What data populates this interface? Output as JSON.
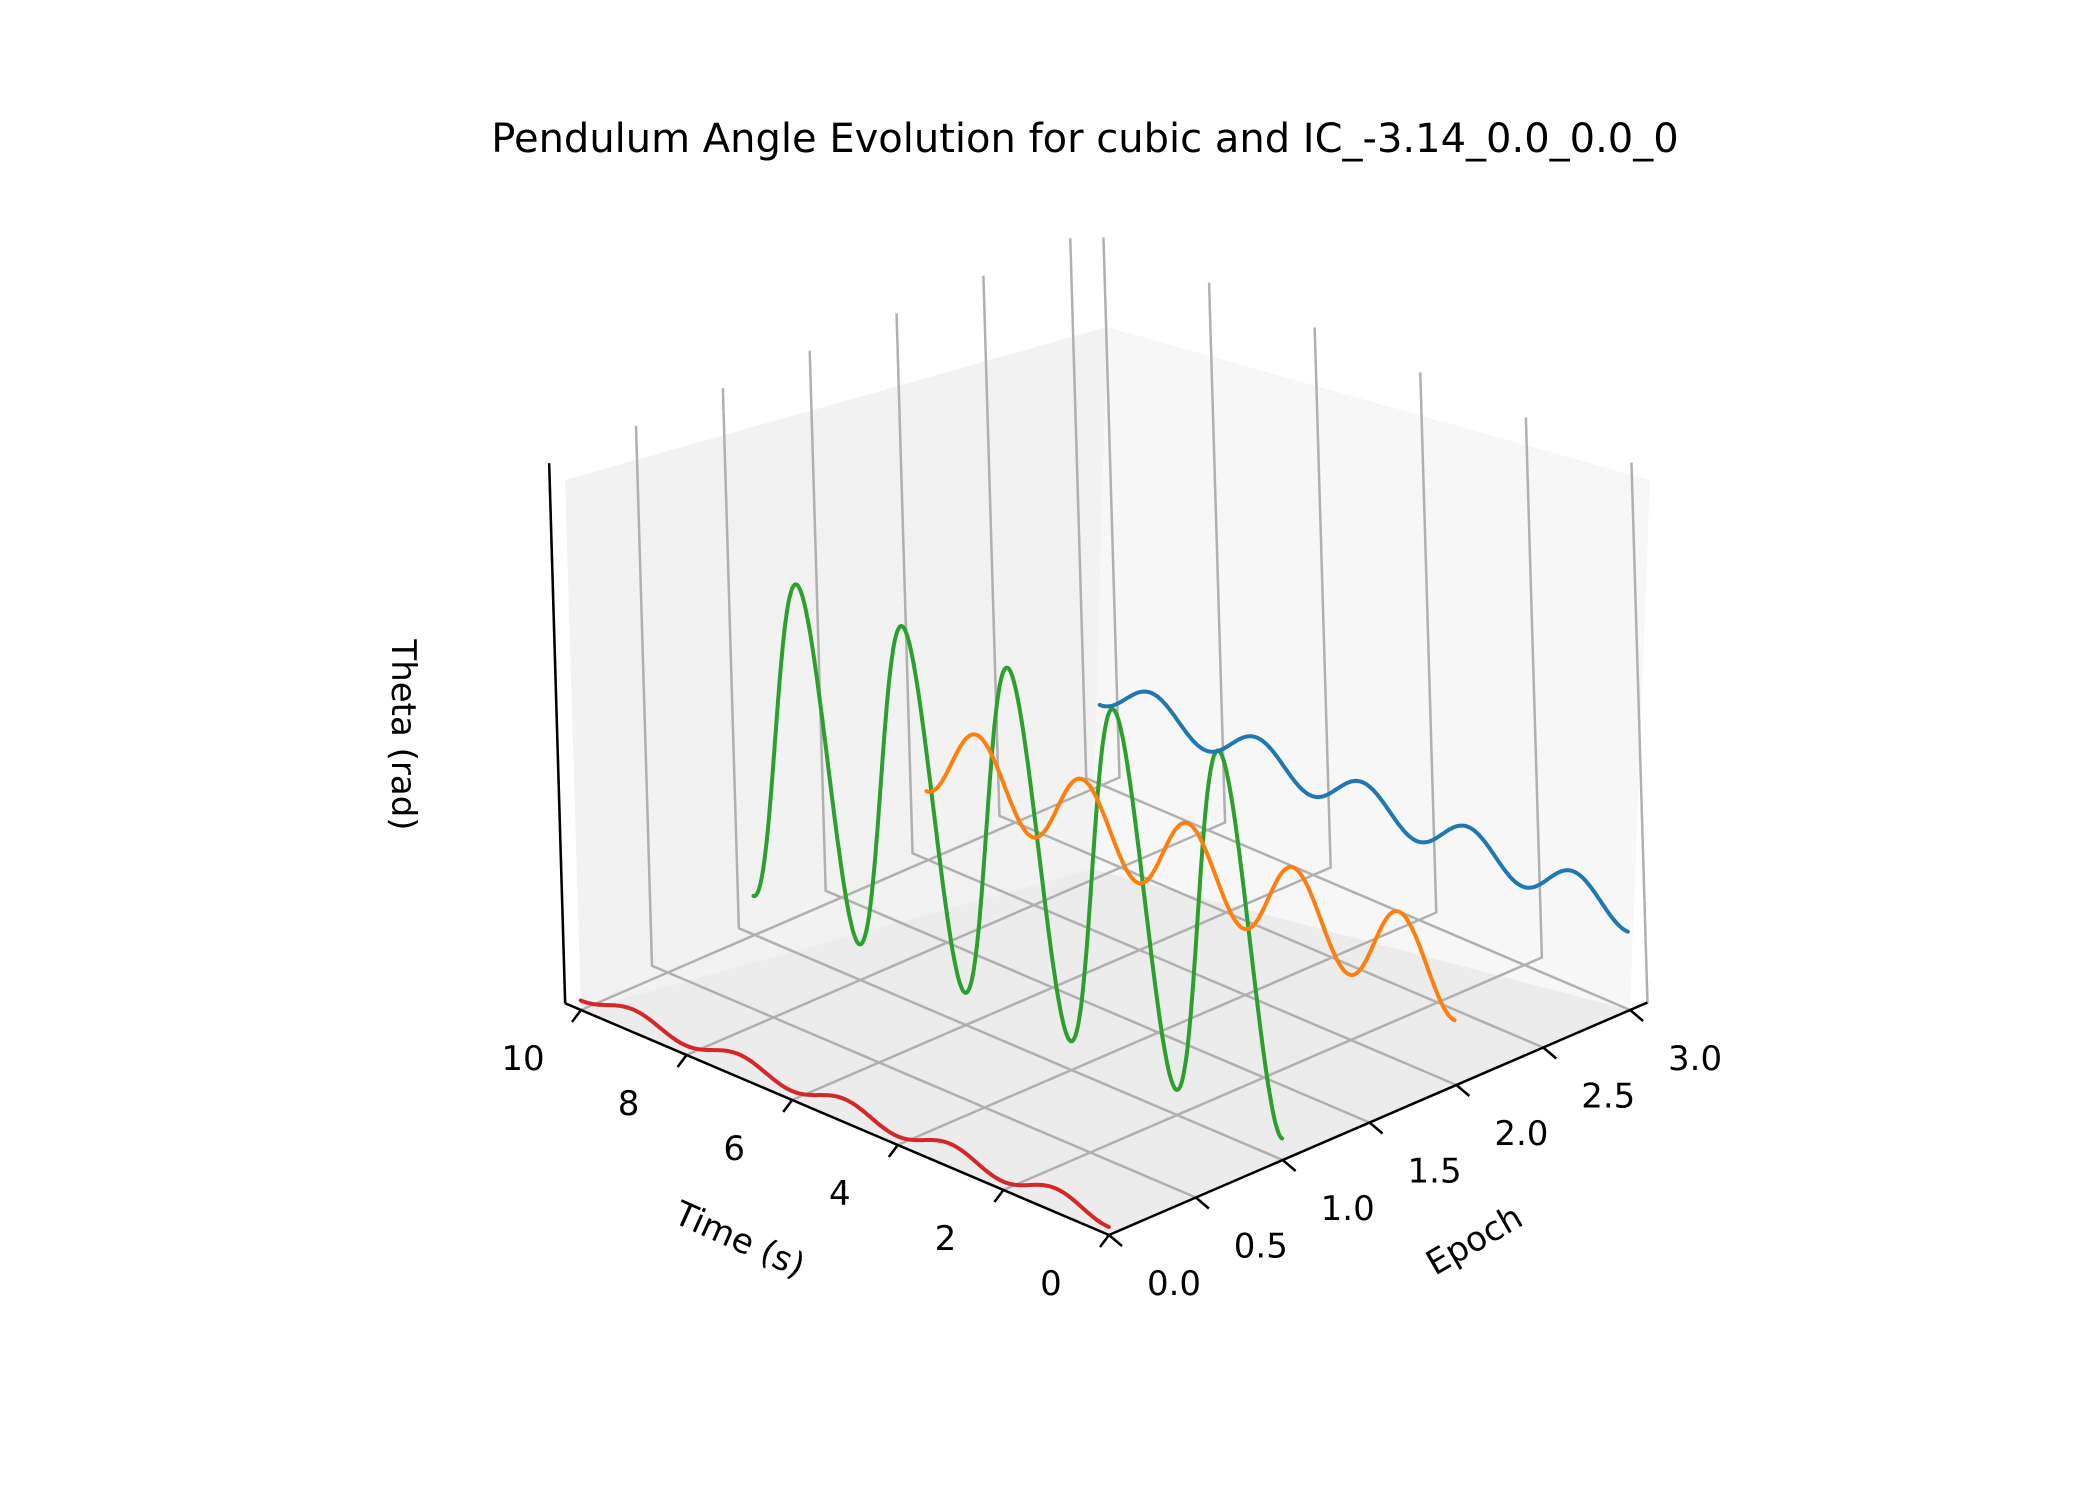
{
  "chart_data": {
    "type": "line",
    "projection": "3d",
    "title": "Pendulum Angle Evolution for cubic and IC_-3.14_0.0_0.0_0",
    "xlabel": "Time (s)",
    "ylabel": "Epoch",
    "zlabel": "Theta (rad)",
    "xlim": [
      0,
      10
    ],
    "ylim": [
      0,
      3
    ],
    "grid": true,
    "x_ticks": [
      "0",
      "2",
      "4",
      "6",
      "8",
      "10"
    ],
    "y_ticks": [
      "0.0",
      "0.5",
      "1.0",
      "1.5",
      "2.0",
      "2.5",
      "3.0"
    ],
    "series": [
      {
        "epoch": 0,
        "color": "#d62728",
        "offset": -2.5,
        "amplitude": 0.15,
        "frequency_hz": 0.5,
        "damping": 0.02
      },
      {
        "epoch": 1,
        "color": "#2ca02c",
        "offset": 1.0,
        "amplitude": 3.4,
        "frequency_hz": 0.5,
        "damping": 0.01
      },
      {
        "epoch": 2,
        "color": "#ff7f0e",
        "offset": -0.8,
        "amplitude": 0.8,
        "frequency_hz": 0.5,
        "damping": 0.01
      },
      {
        "epoch": 3,
        "color": "#1f77b4",
        "offset": -1.0,
        "amplitude": 0.35,
        "frequency_hz": 0.5,
        "damping": 0.01
      }
    ]
  }
}
